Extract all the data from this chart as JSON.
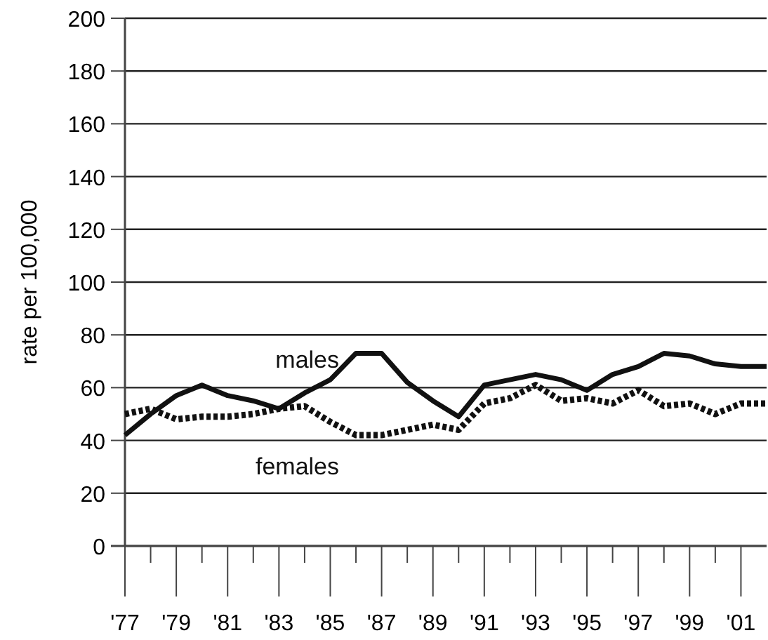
{
  "chart_data": {
    "type": "line",
    "ylabel": "rate per 100,000",
    "x": [
      1977,
      1978,
      1979,
      1980,
      1981,
      1982,
      1983,
      1984,
      1985,
      1986,
      1987,
      1988,
      1989,
      1990,
      1991,
      1992,
      1993,
      1994,
      1995,
      1996,
      1997,
      1998,
      1999,
      2000,
      2001,
      2002
    ],
    "series": [
      {
        "name": "males",
        "color": "#111111",
        "line_style": "solid",
        "values": [
          42,
          50,
          57,
          61,
          57,
          55,
          52,
          58,
          63,
          73,
          73,
          62,
          55,
          49,
          61,
          63,
          65,
          63,
          59,
          65,
          68,
          73,
          72,
          69,
          68,
          68
        ]
      },
      {
        "name": "females",
        "color": "#111111",
        "line_style": "dotted",
        "values": [
          50,
          52,
          48,
          49,
          49,
          50,
          52,
          53,
          47,
          42,
          42,
          44,
          46,
          44,
          54,
          56,
          61,
          55,
          56,
          54,
          59,
          53,
          54,
          50,
          54,
          54
        ]
      }
    ],
    "xlim": [
      1977,
      2002
    ],
    "xticks": [
      {
        "value": 1977,
        "label": "'77"
      },
      {
        "value": 1978,
        "label": null
      },
      {
        "value": 1979,
        "label": "'79"
      },
      {
        "value": 1980,
        "label": null
      },
      {
        "value": 1981,
        "label": "'81"
      },
      {
        "value": 1982,
        "label": null
      },
      {
        "value": 1983,
        "label": "'83"
      },
      {
        "value": 1984,
        "label": null
      },
      {
        "value": 1985,
        "label": "'85"
      },
      {
        "value": 1986,
        "label": null
      },
      {
        "value": 1987,
        "label": "'87"
      },
      {
        "value": 1988,
        "label": null
      },
      {
        "value": 1989,
        "label": "'89"
      },
      {
        "value": 1990,
        "label": null
      },
      {
        "value": 1991,
        "label": "'91"
      },
      {
        "value": 1992,
        "label": null
      },
      {
        "value": 1993,
        "label": "'93"
      },
      {
        "value": 1994,
        "label": null
      },
      {
        "value": 1995,
        "label": "'95"
      },
      {
        "value": 1996,
        "label": null
      },
      {
        "value": 1997,
        "label": "'97"
      },
      {
        "value": 1998,
        "label": null
      },
      {
        "value": 1999,
        "label": "'99"
      },
      {
        "value": 2000,
        "label": null
      },
      {
        "value": 2001,
        "label": "'01"
      }
    ],
    "ylim": [
      0,
      200
    ],
    "yticks": [
      0,
      20,
      40,
      60,
      80,
      100,
      120,
      140,
      160,
      180,
      200
    ],
    "grid": "y",
    "marker": "none"
  }
}
